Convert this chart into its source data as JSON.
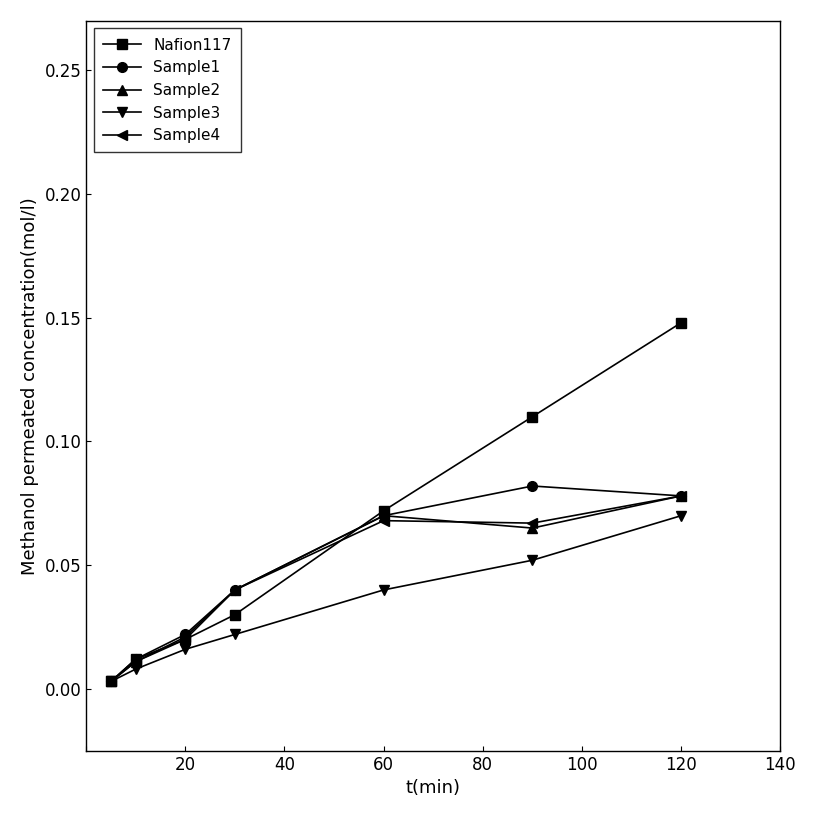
{
  "title": "",
  "xlabel": "t(min)",
  "ylabel": "Methanol permeated concentration(mol/l)",
  "xlim": [
    0,
    140
  ],
  "ylim": [
    -0.025,
    0.27
  ],
  "xticks": [
    0,
    20,
    40,
    60,
    80,
    100,
    120,
    140
  ],
  "yticks": [
    0.0,
    0.05,
    0.1,
    0.15,
    0.2,
    0.25
  ],
  "series": [
    {
      "label": "Nafion117",
      "marker": "s",
      "x": [
        5,
        10,
        20,
        30,
        60,
        90,
        120
      ],
      "y": [
        0.003,
        0.012,
        0.02,
        0.03,
        0.072,
        0.11,
        0.148
      ]
    },
    {
      "label": "Sample1",
      "marker": "o",
      "x": [
        5,
        10,
        20,
        30,
        60,
        90,
        120
      ],
      "y": [
        0.003,
        0.012,
        0.022,
        0.04,
        0.07,
        0.082,
        0.078
      ]
    },
    {
      "label": "Sample2",
      "marker": "^",
      "x": [
        5,
        10,
        20,
        30,
        60,
        90,
        120
      ],
      "y": [
        0.003,
        0.011,
        0.02,
        0.04,
        0.07,
        0.065,
        0.078
      ]
    },
    {
      "label": "Sample3",
      "marker": "v",
      "x": [
        5,
        10,
        20,
        30,
        60,
        90,
        120
      ],
      "y": [
        0.003,
        0.008,
        0.016,
        0.022,
        0.04,
        0.052,
        0.07
      ]
    },
    {
      "label": "Sample4",
      "marker": "<",
      "x": [
        5,
        10,
        20,
        30,
        60,
        90,
        120
      ],
      "y": [
        0.003,
        0.011,
        0.021,
        0.04,
        0.068,
        0.067,
        0.078
      ]
    }
  ],
  "line_color": "#000000",
  "bg_color": "#ffffff",
  "legend_loc": "upper left",
  "legend_fontsize": 11,
  "axis_fontsize": 13,
  "tick_fontsize": 12,
  "marker_size": 7,
  "line_width": 1.2
}
